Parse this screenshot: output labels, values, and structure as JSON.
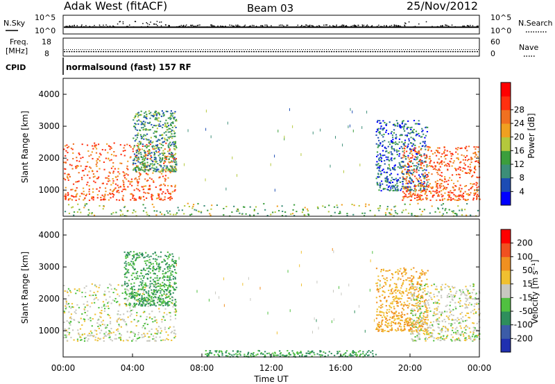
{
  "header": {
    "station": "Adak West (fitACF)",
    "beam": "Beam 03",
    "date": "25/Nov/2012"
  },
  "side_labels": {
    "nsky": "N.Sky",
    "freq_line1": "Freq.",
    "freq_line2": "[MHz]",
    "cpid": "CPID",
    "nsearch": "N.Search",
    "nave": "Nave"
  },
  "strip_ticks": {
    "nsky_top": "10^5",
    "nsky_bottom": "10^0",
    "nsearch_top": "10^5",
    "nsearch_bottom": "10^0",
    "freq_top": "18",
    "freq_bottom": "8",
    "nave_top": "60",
    "nave_bottom": "0"
  },
  "cpid_text": "normalsound (fast) 157 RF",
  "x_axis": {
    "title": "Time UT",
    "ticks": [
      "00:00",
      "04:00",
      "08:00",
      "12:00",
      "16:00",
      "20:00",
      "00:00"
    ]
  },
  "power_panel": {
    "ylabel": "Slant Range [km]",
    "yticks": [
      "1000",
      "2000",
      "3000",
      "4000"
    ],
    "colorbar_title": "Power [dB]",
    "colorbar_ticks": [
      "4",
      "8",
      "12",
      "16",
      "20",
      "24",
      "28"
    ],
    "colors": [
      "#0000ff",
      "#1c4cb4",
      "#3c8e78",
      "#3c9e3c",
      "#b4c83c",
      "#f0a020",
      "#f07020",
      "#ff3010",
      "#ff0000"
    ]
  },
  "velocity_panel": {
    "ylabel": "Slant Range [km]",
    "yticks": [
      "1000",
      "2000",
      "3000",
      "4000"
    ],
    "colorbar_title": "Velocity [m s⁻¹]",
    "colorbar_ticks": [
      "200",
      "100",
      "50",
      "15",
      "-15",
      "-50",
      "-100",
      "-200"
    ],
    "colors": [
      "#2030b0",
      "#3c5ca8",
      "#2e8e5c",
      "#50c040",
      "#c8c8c0",
      "#f0c030",
      "#f09020",
      "#f05020",
      "#ff0000"
    ]
  },
  "chart_data": {
    "type": "heatmap",
    "title": "Adak West (fitACF)",
    "subtitle": "Beam 03",
    "date": "25/Nov/2012",
    "x_range_hours": [
      0,
      24
    ],
    "y_range_km": [
      180,
      4500
    ],
    "panels": [
      {
        "name": "Power",
        "unit": "dB",
        "scale_ticks": [
          4,
          8,
          12,
          16,
          20,
          24,
          28
        ],
        "scatter_regions": [
          {
            "time_start": "00:00",
            "time_end": "06:30",
            "range_km": [
              700,
              2500
            ],
            "dominant_db": 28
          },
          {
            "time_start": "04:00",
            "time_end": "06:30",
            "range_km": [
              1600,
              3500
            ],
            "dominant_db": 12
          },
          {
            "time_start": "18:00",
            "time_end": "21:00",
            "range_km": [
              1000,
              3200
            ],
            "dominant_db": 8
          },
          {
            "time_start": "19:30",
            "time_end": "24:00",
            "range_km": [
              700,
              2400
            ],
            "dominant_db": 28
          },
          {
            "time_start": "00:00",
            "time_end": "24:00",
            "range_km": [
              180,
              600
            ],
            "dominant_db": 16
          }
        ]
      },
      {
        "name": "Velocity",
        "unit": "m s⁻¹",
        "scale_ticks": [
          200,
          100,
          50,
          15,
          -15,
          -50,
          -100,
          -200
        ],
        "scatter_regions": [
          {
            "time_start": "00:00",
            "time_end": "06:30",
            "range_km": [
              700,
              2500
            ],
            "dominant_mps": 0
          },
          {
            "time_start": "03:30",
            "time_end": "06:30",
            "range_km": [
              1800,
              3500
            ],
            "dominant_mps": -50
          },
          {
            "time_start": "18:00",
            "time_end": "21:00",
            "range_km": [
              1000,
              3000
            ],
            "dominant_mps": 50
          },
          {
            "time_start": "20:00",
            "time_end": "24:00",
            "range_km": [
              700,
              2500
            ],
            "dominant_mps": 0
          },
          {
            "time_start": "08:00",
            "time_end": "18:00",
            "range_km": [
              180,
              400
            ],
            "dominant_mps": -50
          }
        ]
      }
    ],
    "strips": {
      "nsky_log_level": 1.8,
      "frequency_mhz": 10.5,
      "nave": 22
    }
  }
}
